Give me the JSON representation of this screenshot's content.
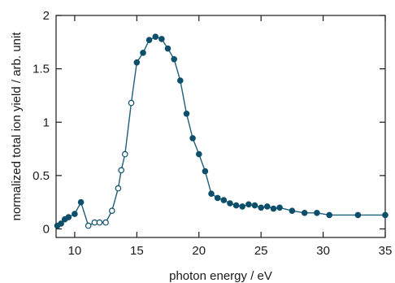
{
  "chart_data": {
    "type": "scatter",
    "title": "",
    "xlabel": "photon energy / eV",
    "ylabel": "normalized total ion yield / arb. unit",
    "xlim": [
      8.5,
      35
    ],
    "ylim": [
      -0.08,
      2
    ],
    "x_ticks": [
      10,
      15,
      20,
      25,
      30,
      35
    ],
    "y_ticks": [
      0,
      0.5,
      1,
      1.5,
      2
    ],
    "x_tick_labels": [
      "10",
      "15",
      "20",
      "25",
      "30",
      "35"
    ],
    "y_tick_labels": [
      "0",
      "0.5",
      "1",
      "1.5",
      "2"
    ],
    "grid": false,
    "line_color": "#1f5f7a",
    "marker_color": "#0d4f6b",
    "series": [
      {
        "points": [
          {
            "x": 8.6,
            "y": 0.03,
            "filled": true
          },
          {
            "x": 8.9,
            "y": 0.05,
            "filled": true
          },
          {
            "x": 9.2,
            "y": 0.09,
            "filled": true
          },
          {
            "x": 9.5,
            "y": 0.11,
            "filled": true
          },
          {
            "x": 10.0,
            "y": 0.14,
            "filled": true
          },
          {
            "x": 10.5,
            "y": 0.25,
            "filled": true
          },
          {
            "x": 11.1,
            "y": 0.03,
            "filled": false
          },
          {
            "x": 11.6,
            "y": 0.06,
            "filled": false
          },
          {
            "x": 12.0,
            "y": 0.06,
            "filled": false
          },
          {
            "x": 12.5,
            "y": 0.06,
            "filled": false
          },
          {
            "x": 13.0,
            "y": 0.17,
            "filled": false
          },
          {
            "x": 13.5,
            "y": 0.38,
            "filled": false
          },
          {
            "x": 13.75,
            "y": 0.55,
            "filled": false
          },
          {
            "x": 14.05,
            "y": 0.7,
            "filled": false
          },
          {
            "x": 14.55,
            "y": 1.18,
            "filled": false
          },
          {
            "x": 15.0,
            "y": 1.56,
            "filled": true
          },
          {
            "x": 15.5,
            "y": 1.65,
            "filled": true
          },
          {
            "x": 16.0,
            "y": 1.77,
            "filled": true
          },
          {
            "x": 16.5,
            "y": 1.8,
            "filled": true
          },
          {
            "x": 17.0,
            "y": 1.78,
            "filled": true
          },
          {
            "x": 17.5,
            "y": 1.69,
            "filled": true
          },
          {
            "x": 18.0,
            "y": 1.59,
            "filled": true
          },
          {
            "x": 18.5,
            "y": 1.39,
            "filled": true
          },
          {
            "x": 19.0,
            "y": 1.08,
            "filled": true
          },
          {
            "x": 19.5,
            "y": 0.85,
            "filled": true
          },
          {
            "x": 20.0,
            "y": 0.7,
            "filled": true
          },
          {
            "x": 20.5,
            "y": 0.54,
            "filled": true
          },
          {
            "x": 21.0,
            "y": 0.33,
            "filled": true
          },
          {
            "x": 21.5,
            "y": 0.29,
            "filled": true
          },
          {
            "x": 22.0,
            "y": 0.27,
            "filled": true
          },
          {
            "x": 22.5,
            "y": 0.24,
            "filled": true
          },
          {
            "x": 23.0,
            "y": 0.22,
            "filled": true
          },
          {
            "x": 23.5,
            "y": 0.21,
            "filled": true
          },
          {
            "x": 24.0,
            "y": 0.23,
            "filled": true
          },
          {
            "x": 24.5,
            "y": 0.22,
            "filled": true
          },
          {
            "x": 25.0,
            "y": 0.2,
            "filled": true
          },
          {
            "x": 25.5,
            "y": 0.21,
            "filled": true
          },
          {
            "x": 26.0,
            "y": 0.19,
            "filled": true
          },
          {
            "x": 26.5,
            "y": 0.2,
            "filled": true
          },
          {
            "x": 27.5,
            "y": 0.17,
            "filled": true
          },
          {
            "x": 28.5,
            "y": 0.15,
            "filled": true
          },
          {
            "x": 29.5,
            "y": 0.15,
            "filled": true
          },
          {
            "x": 30.5,
            "y": 0.13,
            "filled": true
          },
          {
            "x": 32.8,
            "y": 0.13,
            "filled": true
          },
          {
            "x": 35.0,
            "y": 0.13,
            "filled": true
          }
        ]
      }
    ]
  }
}
